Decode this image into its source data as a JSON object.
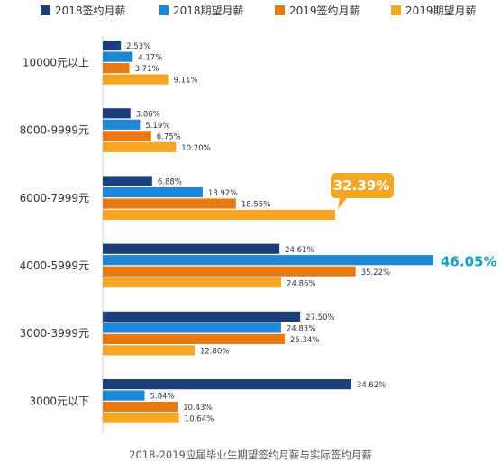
{
  "chart_data": {
    "type": "bar",
    "orientation": "horizontal",
    "categories": [
      "10000元以上",
      "8000-9999元",
      "6000-7999元",
      "4000-5999元",
      "3000-3999元",
      "3000元以下"
    ],
    "series": [
      {
        "name": "2018签约月薪",
        "color": "#1a3f7a",
        "values": [
          2.53,
          3.86,
          6.88,
          24.61,
          27.5,
          34.62
        ],
        "labels": [
          "2.53%",
          "3.86%",
          "6.88%",
          "24.61%",
          "27.50%",
          "34.62%"
        ]
      },
      {
        "name": "2018期望月薪",
        "color": "#1f87d6",
        "values": [
          4.17,
          5.19,
          13.92,
          46.05,
          24.83,
          5.84
        ],
        "labels": [
          "4.17%",
          "5.19%",
          "13.92%",
          "46.05%",
          "24.83%",
          "5.84%"
        ]
      },
      {
        "name": "2019签约月薪",
        "color": "#e97a12",
        "values": [
          3.71,
          6.75,
          18.55,
          35.22,
          25.34,
          10.43
        ],
        "labels": [
          "3.71%",
          "6.75%",
          "18.55%",
          "35.22%",
          "25.34%",
          "10.43%"
        ]
      },
      {
        "name": "2019期望月薪",
        "color": "#f5a623",
        "values": [
          9.11,
          10.2,
          32.39,
          24.86,
          12.8,
          10.64
        ],
        "labels": [
          "9.11%",
          "10.20%",
          "32.39%",
          "24.86%",
          "12.80%",
          "10.64%"
        ]
      }
    ],
    "xlim": [
      0,
      50
    ],
    "legend": "top",
    "grid": false,
    "caption": "2018-2019应届毕业生期望签约月薪与实际签约月薪",
    "callouts": [
      {
        "series": 3,
        "category": 2,
        "text": "32.39%",
        "color": "#f5a623"
      },
      {
        "series": 1,
        "category": 3,
        "text": "46.05%",
        "color": "#14a0c8"
      }
    ]
  }
}
